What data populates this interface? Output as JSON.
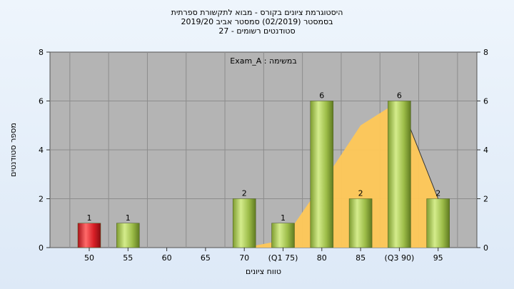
{
  "chart_data": {
    "type": "bar",
    "title_lines": [
      "היסטוגרמת ציונים בקורס - מבוא לתקשורת ספרתית",
      "בסמסטר  (02/2019)  סמסטר אביב 2019/20",
      "סטודנטים רשומים - 27"
    ],
    "subtitle": "במשימה : Exam_A",
    "xlabel": "טווח ציונים",
    "ylabel": "מספר סטודנטים",
    "categories": [
      "50",
      "55",
      "60",
      "65",
      "70",
      "(Q1 75)",
      "80",
      "85",
      "(Q3 90)",
      "95"
    ],
    "values": [
      1,
      1,
      0,
      0,
      2,
      1,
      6,
      2,
      6,
      2
    ],
    "data_labels": [
      "1",
      "1",
      "",
      "",
      "2",
      "1",
      "6",
      "2",
      "6",
      "2"
    ],
    "bar_colors": [
      "#d81f26",
      "#a8c850",
      "#a8c850",
      "#a8c850",
      "#a8c850",
      "#a8c850",
      "#a8c850",
      "#a8c850",
      "#a8c850",
      "#a8c850"
    ],
    "area": {
      "color": "#ffc857",
      "values": [
        0,
        0,
        0,
        0,
        0,
        0.3,
        2.6,
        5.0,
        6.0,
        2.0
      ]
    },
    "ylim": [
      0,
      8
    ],
    "yticks": [
      0,
      2,
      4,
      6,
      8
    ],
    "grid": true,
    "plot_background": "#b4b4b4"
  }
}
